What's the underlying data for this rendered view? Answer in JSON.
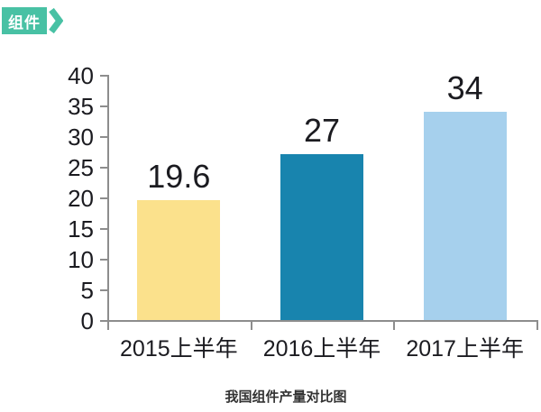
{
  "badge": {
    "label": "组件",
    "color": "#48C1A4",
    "arrow_icon": "chevron-right"
  },
  "chart_data": {
    "type": "bar",
    "categories": [
      "2015上半年",
      "2016上半年",
      "2017上半年"
    ],
    "values": [
      19.6,
      27,
      34
    ],
    "data_labels": [
      "19.6",
      "27",
      "34"
    ],
    "bar_colors": [
      "#FBE18C",
      "#1884AE",
      "#A6D0ED"
    ],
    "title": "我国组件产量对比图",
    "xlabel": "",
    "ylabel": "",
    "ylim": [
      0,
      40
    ],
    "ytick_step": 5,
    "ytick_labels": [
      "0",
      "5",
      "10",
      "15",
      "20",
      "25",
      "30",
      "35",
      "40"
    ],
    "grid": false,
    "legend": "none",
    "axis_color": "#8d8d8d",
    "label_color": "#1b1b20"
  }
}
